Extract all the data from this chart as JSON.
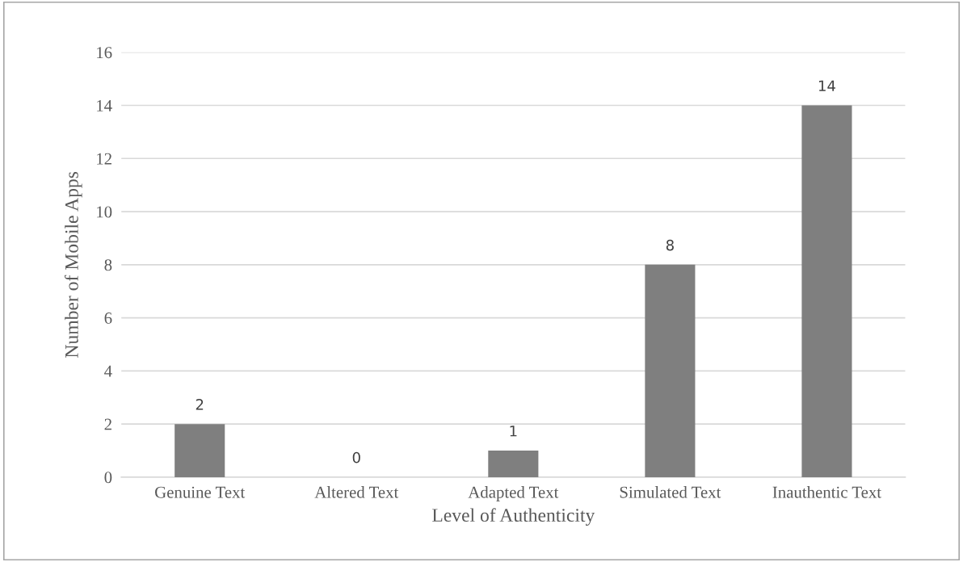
{
  "chart_data": {
    "type": "bar",
    "xlabel": "Level of Authenticity",
    "ylabel": "Number of Mobile Apps",
    "categories": [
      "Genuine Text",
      "Altered Text",
      "Adapted Text",
      "Simulated Text",
      "Inauthentic Text"
    ],
    "values": [
      2,
      0,
      1,
      8,
      14
    ],
    "color": "#7f7f7f",
    "ylim": [
      0,
      16
    ],
    "yticks": [
      0,
      2,
      4,
      6,
      8,
      10,
      12,
      14,
      16
    ],
    "grid": "y",
    "data_labels": true
  }
}
